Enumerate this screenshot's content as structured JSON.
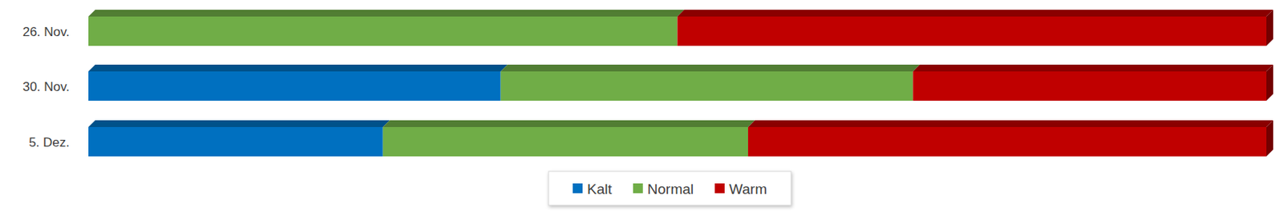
{
  "chart_data": {
    "type": "bar",
    "orientation": "horizontal",
    "stacked": true,
    "tick_labels": "y",
    "legend": "bottom",
    "categories": [
      "26. Nov.",
      "30. Nov.",
      "5. Dez."
    ],
    "series": [
      {
        "name": "Kalt",
        "color": "#0070c0",
        "values": [
          0,
          35,
          25
        ]
      },
      {
        "name": "Normal",
        "color": "#70ad47",
        "values": [
          50,
          35,
          31
        ]
      },
      {
        "name": "Warm",
        "color": "#c00000",
        "values": [
          50,
          30,
          44
        ]
      }
    ]
  }
}
